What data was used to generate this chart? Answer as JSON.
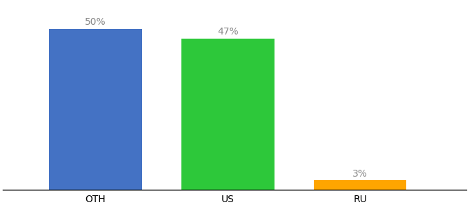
{
  "categories": [
    "OTH",
    "US",
    "RU"
  ],
  "values": [
    50,
    47,
    3
  ],
  "bar_colors": [
    "#4472C4",
    "#2DC83A",
    "#FFA500"
  ],
  "labels": [
    "50%",
    "47%",
    "3%"
  ],
  "ylim": [
    0,
    58
  ],
  "bar_width": 0.7,
  "label_fontsize": 10,
  "tick_fontsize": 10,
  "label_color": "#888888",
  "background_color": "#ffffff",
  "x_positions": [
    1,
    2,
    3
  ]
}
